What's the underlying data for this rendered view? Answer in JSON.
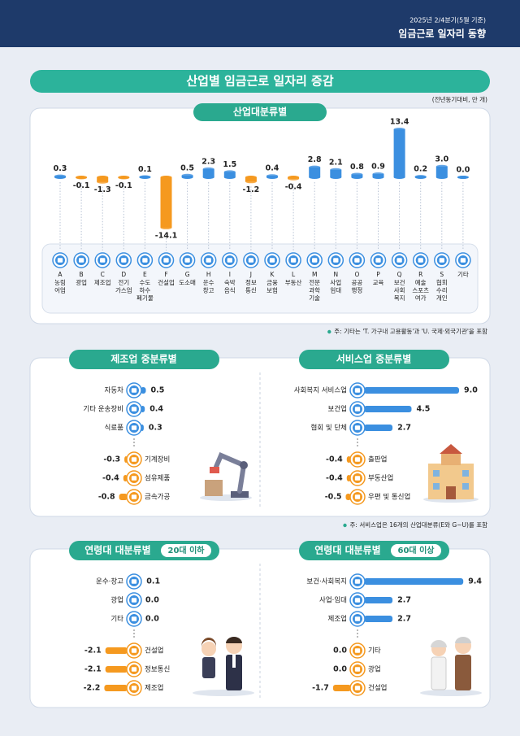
{
  "header": {
    "period": "2025년 2/4분기(5월 기준)",
    "title": "임금근로 일자리 동향"
  },
  "title": "산업별 임금근로 일자리 증감",
  "unit": "(전년동기대비, 만 개)",
  "chart_data": [
    {
      "type": "bar",
      "title": "산업대분류별",
      "categories": [
        "A",
        "B",
        "C",
        "D",
        "E",
        "F",
        "G",
        "H",
        "I",
        "J",
        "K",
        "L",
        "M",
        "N",
        "O",
        "P",
        "Q",
        "R",
        "S",
        null
      ],
      "category_names": [
        [
          "농림",
          "어업"
        ],
        [
          "광업"
        ],
        [
          "제조업"
        ],
        [
          "전기",
          "가스업"
        ],
        [
          "수도",
          "하수",
          "폐기물"
        ],
        [
          "건설업"
        ],
        [
          "도소매"
        ],
        [
          "운수",
          "창고"
        ],
        [
          "숙박",
          "음식"
        ],
        [
          "정보",
          "통신"
        ],
        [
          "금융",
          "보험"
        ],
        [
          "부동산"
        ],
        [
          "전문",
          "과학",
          "기술"
        ],
        [
          "사업",
          "임대"
        ],
        [
          "공공",
          "행정"
        ],
        [
          "교육"
        ],
        [
          "보건",
          "사회",
          "복지"
        ],
        [
          "예술",
          "스포츠",
          "여가"
        ],
        [
          "협회",
          "수리",
          "개인"
        ],
        [
          "기타"
        ]
      ],
      "values": [
        0.3,
        -0.1,
        -1.3,
        -0.1,
        0.1,
        -14.1,
        0.5,
        2.3,
        1.5,
        -1.2,
        0.4,
        -0.4,
        2.8,
        2.1,
        0.8,
        0.9,
        13.4,
        0.2,
        3.0,
        0.0
      ],
      "value_labels": [
        "0.3",
        "-0.1",
        "-1.3",
        "-0.1",
        "0.1",
        "-14.1",
        "0.5",
        "2.3",
        "1.5",
        "-1.2",
        "0.4",
        "-0.4",
        "2.8",
        "2.1",
        "0.8",
        "0.9",
        "13.4",
        "0.2",
        "3.0",
        "0.0"
      ],
      "positive_color": "#3b8fe0",
      "negative_color": "#f5991f",
      "note": "주: 기타는 'T. 가구내 고용활동'과 'U. 국제·외국기관'을 포함"
    },
    {
      "type": "hbar",
      "title": "제조업 중분류별",
      "categories": [
        "자동차",
        "기타 운송장비",
        "식료품",
        "기계장비",
        "섬유제품",
        "금속가공"
      ],
      "values": [
        0.5,
        0.4,
        0.3,
        -0.3,
        -0.4,
        -0.8
      ],
      "value_labels": [
        "0.5",
        "0.4",
        "0.3",
        "-0.3",
        "-0.4",
        "-0.8"
      ],
      "positive_color": "#3b8fe0",
      "negative_color": "#f5991f"
    },
    {
      "type": "hbar",
      "title": "서비스업 중분류별",
      "categories": [
        "사회복지 서비스업",
        "보건업",
        "협회 및 단체",
        "출판업",
        "부동산업",
        "우편 및 통신업"
      ],
      "values": [
        9.0,
        4.5,
        2.7,
        -0.4,
        -0.4,
        -0.5
      ],
      "value_labels": [
        "9.0",
        "4.5",
        "2.7",
        "-0.4",
        "-0.4",
        "-0.5"
      ],
      "positive_color": "#3b8fe0",
      "negative_color": "#f5991f",
      "note": "주: 서비스업은 16개의 산업대분류(E와 G~U)를 포함"
    },
    {
      "type": "hbar",
      "title": "연령대 대분류별",
      "subtitle": "20대 이하",
      "categories": [
        "운수·창고",
        "광업",
        "기타",
        "건설업",
        "정보통신",
        "제조업"
      ],
      "values": [
        0.1,
        0.0,
        0.0,
        -2.1,
        -2.1,
        -2.2
      ],
      "value_labels": [
        "0.1",
        "0.0",
        "0.0",
        "-2.1",
        "-2.1",
        "-2.2"
      ],
      "positive_color": "#3b8fe0",
      "negative_color": "#f5991f"
    },
    {
      "type": "hbar",
      "title": "연령대 대분류별",
      "subtitle": "60대 이상",
      "categories": [
        "보건·사회복지",
        "사업·임대",
        "제조업",
        "기타",
        "광업",
        "건설업"
      ],
      "values": [
        9.4,
        2.7,
        2.7,
        0.0,
        0.0,
        -1.7
      ],
      "value_labels": [
        "9.4",
        "2.7",
        "2.7",
        "0.0",
        "0.0",
        "-1.7"
      ],
      "positive_color": "#3b8fe0",
      "negative_color": "#f5991f"
    }
  ]
}
